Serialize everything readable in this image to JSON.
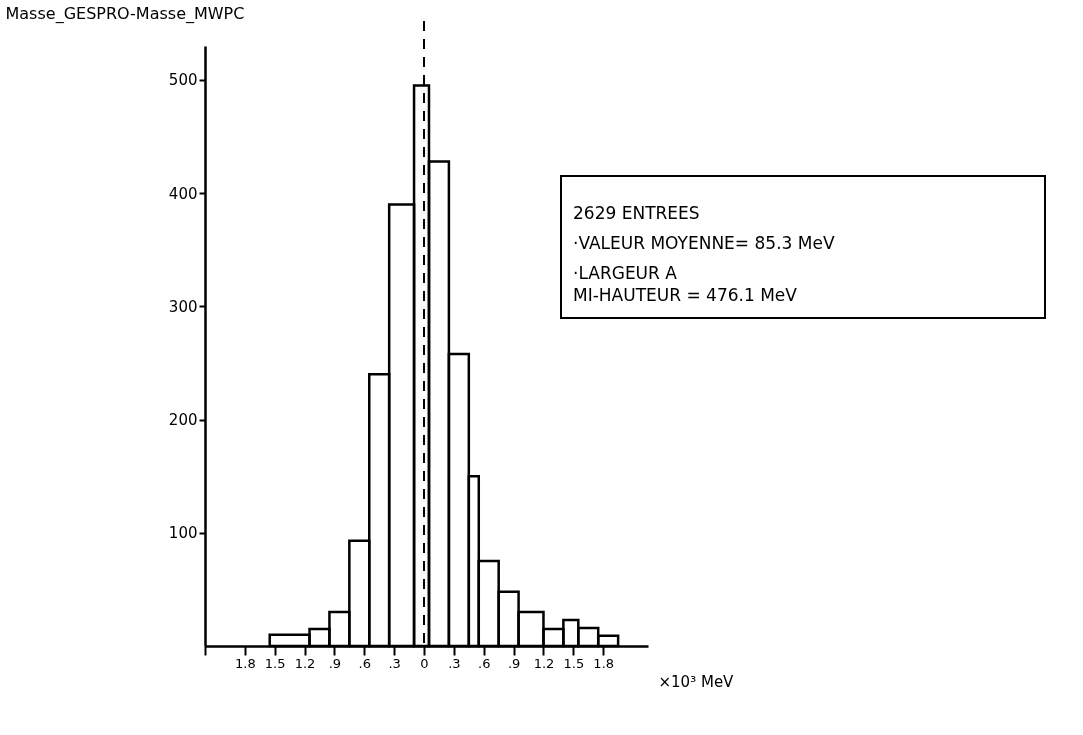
{
  "chart_data": {
    "type": "histogram",
    "ylabel": "Masse_GESPRO-Masse_MWPC",
    "xlabel": "×10³ MeV",
    "bins": [
      -1.55,
      -1.15,
      -0.95,
      -0.75,
      -0.55,
      -0.35,
      -0.1,
      0.05,
      0.25,
      0.45,
      0.55,
      0.75,
      0.95,
      1.2,
      1.4,
      1.55,
      1.75,
      1.95
    ],
    "values": [
      10,
      15,
      30,
      93,
      240,
      390,
      495,
      428,
      258,
      150,
      75,
      48,
      30,
      15,
      23,
      16,
      9
    ],
    "color": "#000000",
    "xlim": [
      -2.2,
      2.25
    ],
    "xticks": [
      {
        "value": -2.2,
        "label": null
      },
      {
        "value": -1.8,
        "label": "1.8"
      },
      {
        "value": -1.5,
        "label": "1.5"
      },
      {
        "value": -1.2,
        "label": "1.2"
      },
      {
        "value": -0.9,
        "label": ".9"
      },
      {
        "value": -0.6,
        "label": ".6"
      },
      {
        "value": -0.3,
        "label": ".3"
      },
      0,
      {
        "value": 0.3,
        "label": ".3"
      },
      {
        "value": 0.6,
        "label": ".6"
      },
      {
        "value": 0.9,
        "label": ".9"
      },
      1.2,
      1.5,
      1.8
    ],
    "ylim": [
      0,
      530
    ],
    "yticks": [
      100,
      200,
      300,
      400,
      500
    ],
    "ref_lines": [
      {
        "axis": "x",
        "value": 0,
        "line_style": "dashed",
        "color": "#000000"
      }
    ],
    "annotations": [
      "2629 ENTREES",
      "·VALEUR MOYENNE= 85.3 MeV",
      "·LARGEUR A\nMI-HAUTEUR      = 476.1 MeV"
    ],
    "grid": false
  }
}
